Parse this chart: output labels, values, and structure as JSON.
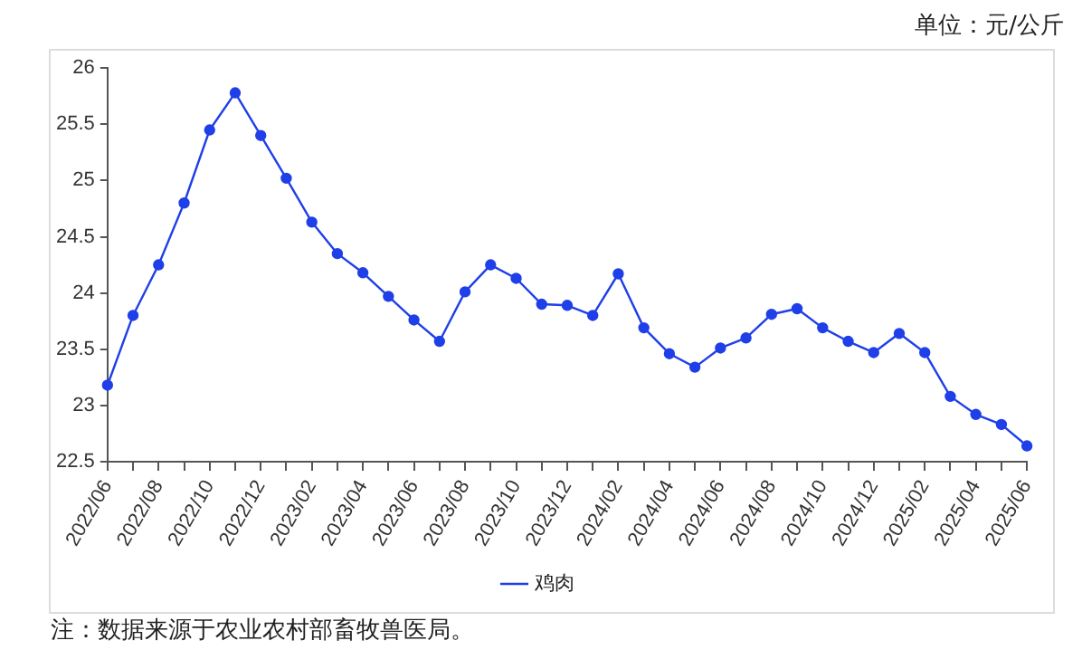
{
  "chart_data": {
    "type": "line",
    "ylabel": "单位：元/公斤",
    "categories": [
      "2022/06",
      null,
      "2022/08",
      null,
      "2022/10",
      null,
      "2022/12",
      null,
      "2023/02",
      null,
      "2023/04",
      null,
      "2023/06",
      null,
      "2023/08",
      null,
      "2023/10",
      null,
      "2023/12",
      null,
      "2024/02",
      null,
      "2024/04",
      null,
      "2024/06",
      null,
      "2024/08",
      null,
      "2024/10",
      null,
      "2024/12",
      null,
      "2025/02",
      null,
      "2025/04",
      null,
      "2025/06"
    ],
    "series": [
      {
        "name": "鸡肉",
        "color": "#1f3fe8",
        "values": [
          23.18,
          23.8,
          24.25,
          24.8,
          25.45,
          25.78,
          25.4,
          25.02,
          24.63,
          24.35,
          24.18,
          23.97,
          23.76,
          23.57,
          24.01,
          24.25,
          24.13,
          23.9,
          23.89,
          23.8,
          24.17,
          23.69,
          23.46,
          23.34,
          23.51,
          23.6,
          23.81,
          23.86,
          23.69,
          23.57,
          23.47,
          23.64,
          23.47,
          23.08,
          22.92,
          22.83,
          22.64
        ]
      }
    ],
    "ylim": [
      22.5,
      26
    ],
    "yticks": [
      22.5,
      23,
      23.5,
      24,
      24.5,
      25,
      25.5,
      26
    ],
    "grid": false,
    "legend": "bottom",
    "marker": "circle",
    "line_style": "solid",
    "annotations": [
      "注：数据来源于农业农村部畜牧兽医局。"
    ]
  }
}
